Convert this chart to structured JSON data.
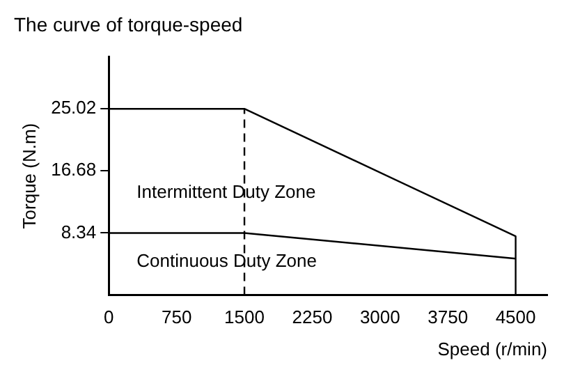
{
  "chart_data": {
    "type": "line",
    "title": "The curve of torque-speed",
    "xlabel": "Speed (r/min)",
    "ylabel": "Torque (N.m)",
    "series": [
      {
        "color": "#000000",
        "x": [
          0,
          1500,
          4500,
          4500
        ],
        "values": [
          25.02,
          25.02,
          7.9,
          0
        ]
      },
      {
        "color": "#000000",
        "x": [
          0,
          1500,
          4500
        ],
        "values": [
          8.34,
          8.34,
          4.9
        ],
        "type": "line"
      }
    ],
    "xlim": [
      0,
      4850
    ],
    "xticks": [
      0,
      750,
      1500,
      2250,
      3000,
      3750,
      4500
    ],
    "ylim": [
      0,
      32
    ],
    "yticks": [
      8.34,
      16.68,
      25.02
    ],
    "ref_lines": [
      {
        "axis": "x",
        "value": 1500,
        "color": "#000000",
        "line_style": "dashed"
      }
    ],
    "annotations": [
      "Intermittent Duty Zone",
      "Continuous Duty Zone"
    ],
    "grid": false,
    "legend": false,
    "marker": "none"
  }
}
